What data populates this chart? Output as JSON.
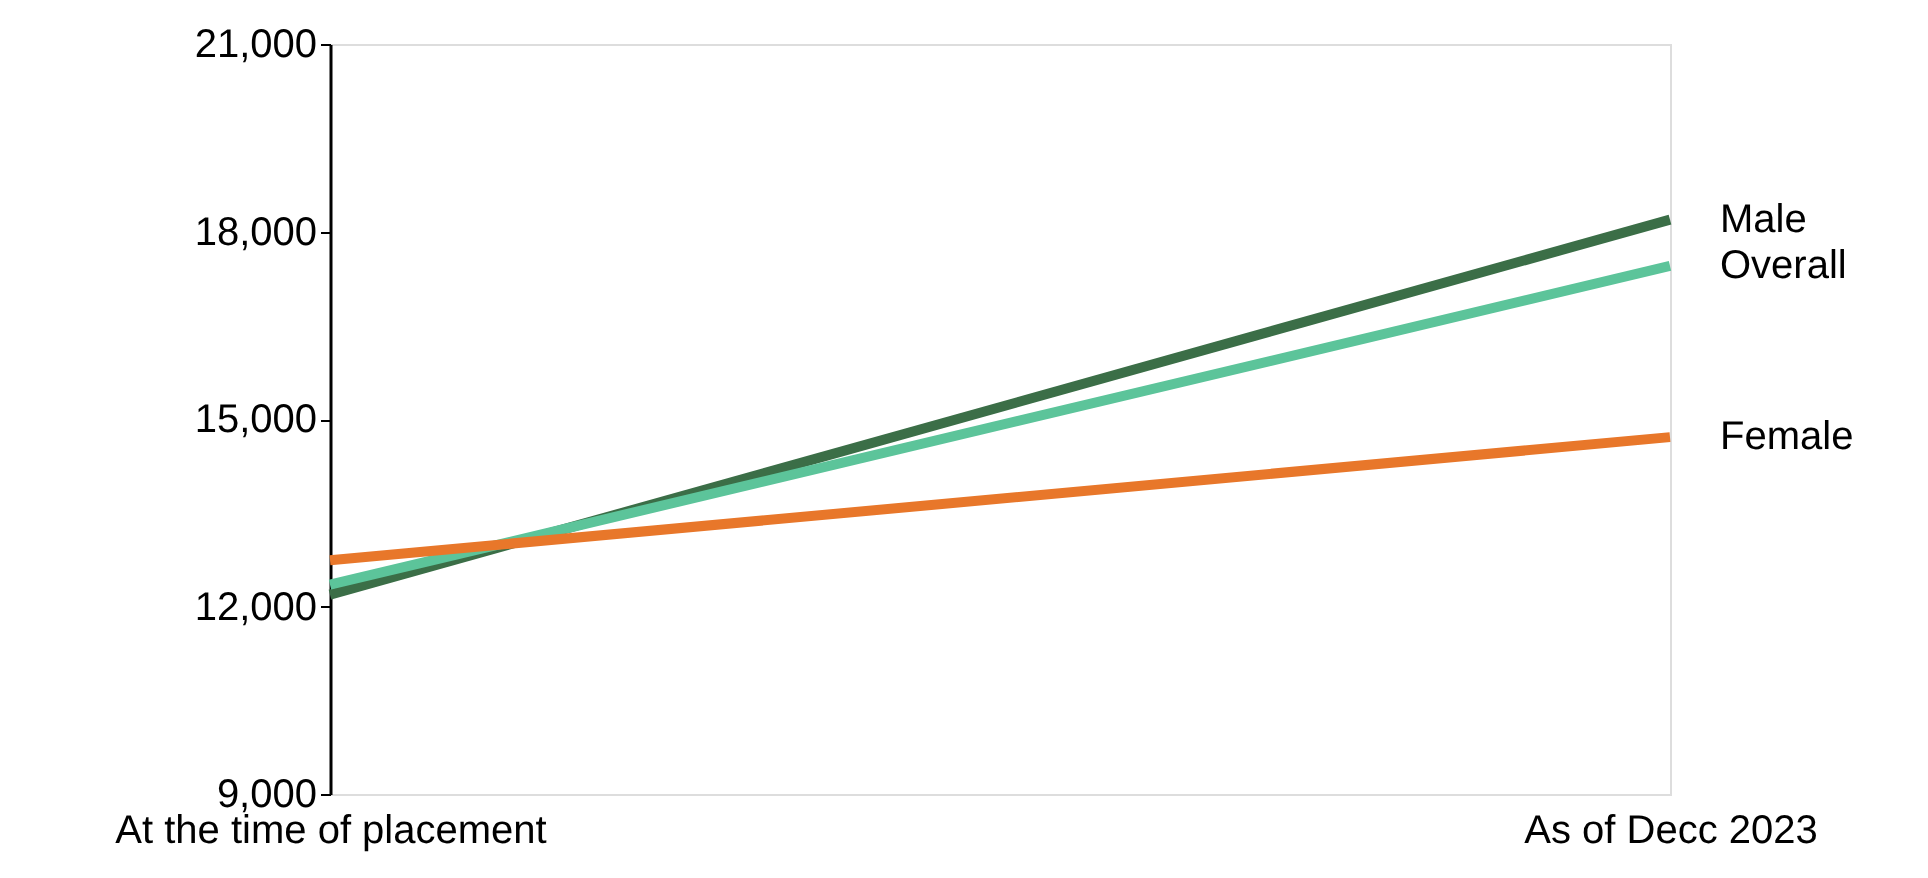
{
  "chart_data": {
    "type": "line",
    "categories": [
      "At the time of placement",
      "As of Decc 2023"
    ],
    "series": [
      {
        "name": "Male",
        "color": "#3b6e47",
        "values": [
          12190,
          18190
        ]
      },
      {
        "name": "Overall",
        "color": "#5cc49a",
        "values": [
          12350,
          17450
        ]
      },
      {
        "name": "Female",
        "color": "#e8772a",
        "values": [
          12740,
          14710
        ]
      }
    ],
    "ylim": [
      9000,
      21000
    ],
    "yticks": [
      {
        "value": 9000,
        "label": "9,000"
      },
      {
        "value": 12000,
        "label": "12,000"
      },
      {
        "value": 15000,
        "label": "15,000"
      },
      {
        "value": 18000,
        "label": "18,000"
      },
      {
        "value": 21000,
        "label": "21,000"
      }
    ],
    "grid": false,
    "legend": false,
    "marker": "none",
    "line_style": "solid"
  }
}
